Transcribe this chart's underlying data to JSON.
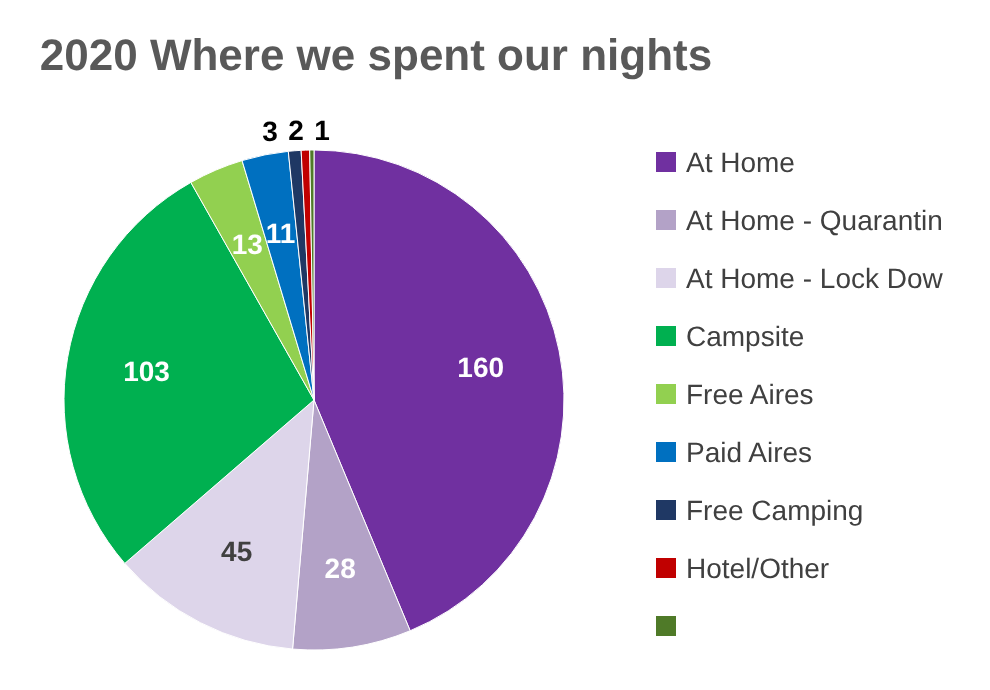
{
  "chart_data": {
    "type": "pie",
    "title": "2020 Where we spent our nights",
    "categories": [
      "At Home",
      "At Home - Quarantin",
      "At Home - Lock Dow",
      "Campsite",
      "Free Aires",
      "Paid Aires",
      "Free Camping",
      "Hotel/Other",
      null
    ],
    "values": [
      160,
      28,
      45,
      103,
      13,
      11,
      3,
      2,
      1
    ],
    "colors": [
      "#7030a0",
      "#b3a2c7",
      "#ddd5ea",
      "#00b050",
      "#92d050",
      "#0070c0",
      "#1f3864",
      "#c00000",
      "#4f7a28"
    ],
    "data_labels": true,
    "legend": "right"
  }
}
